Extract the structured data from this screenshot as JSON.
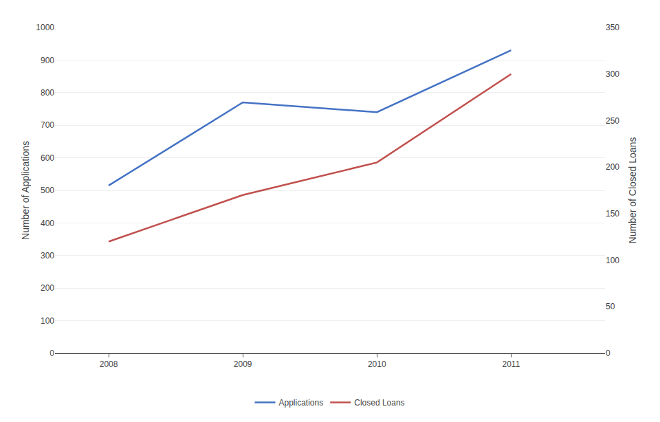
{
  "chart_data": {
    "type": "line",
    "x": [
      2008,
      2009,
      2010,
      2011
    ],
    "xlim": [
      2007.6,
      2011.7
    ],
    "xticks": [
      2008,
      2009,
      2010,
      2011
    ],
    "ylabel": "Number of Applications",
    "y2label": "Number of Closed Loans",
    "ylim": [
      0,
      1000
    ],
    "yticks": [
      0,
      100,
      200,
      300,
      400,
      500,
      600,
      700,
      800,
      900,
      1000
    ],
    "y2lim": [
      0,
      350
    ],
    "y2ticks": [
      0,
      50,
      100,
      150,
      200,
      250,
      300,
      350
    ],
    "series": [
      {
        "name": "Applications",
        "color": "#4472C4",
        "values": [
          515,
          770,
          740,
          930
        ]
      },
      {
        "name": "Closed Loans",
        "color": "#C0504D",
        "values": [
          120,
          170,
          205,
          300
        ],
        "axis": "y2"
      }
    ],
    "grid": true,
    "legend": "bottom"
  }
}
